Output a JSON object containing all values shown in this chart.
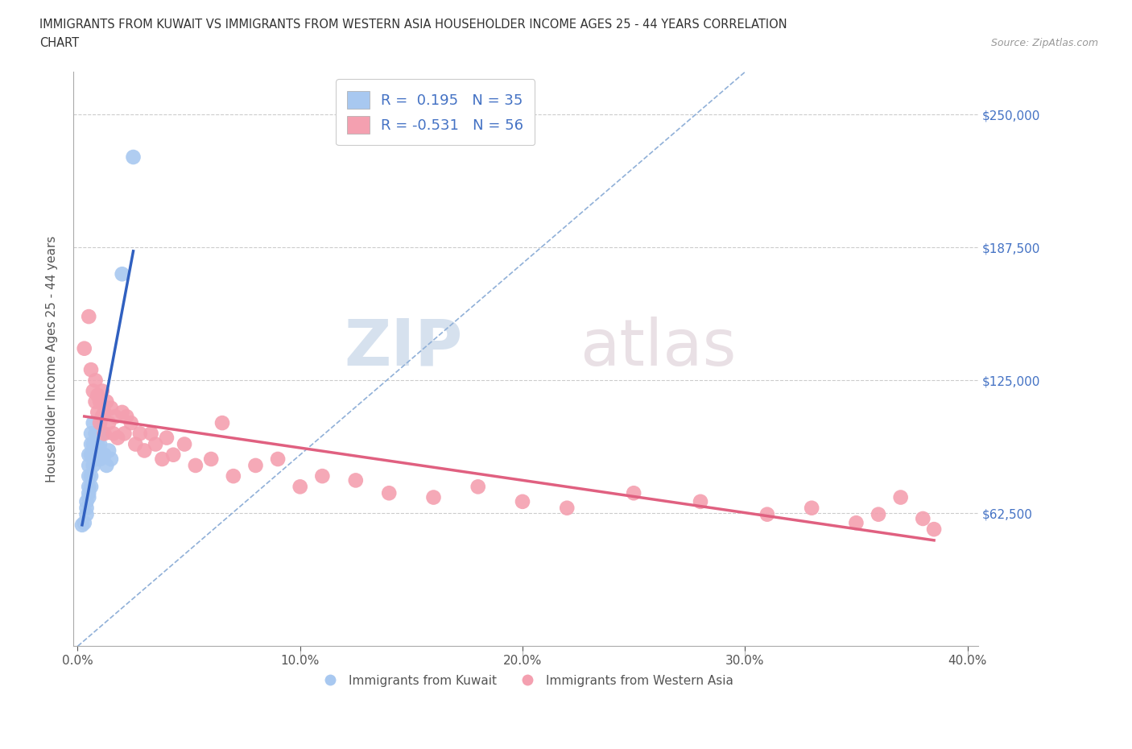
{
  "title_line1": "IMMIGRANTS FROM KUWAIT VS IMMIGRANTS FROM WESTERN ASIA HOUSEHOLDER INCOME AGES 25 - 44 YEARS CORRELATION",
  "title_line2": "CHART",
  "source_text": "Source: ZipAtlas.com",
  "ylabel": "Householder Income Ages 25 - 44 years",
  "xlabel_ticks": [
    "0.0%",
    "10.0%",
    "20.0%",
    "30.0%",
    "40.0%"
  ],
  "ytick_labels": [
    "$62,500",
    "$125,000",
    "$187,500",
    "$250,000"
  ],
  "ytick_values": [
    62500,
    125000,
    187500,
    250000
  ],
  "xlim": [
    -0.002,
    0.405
  ],
  "ylim": [
    0,
    270000
  ],
  "legend_label1": "R =  0.195   N = 35",
  "legend_label2": "R = -0.531   N = 56",
  "legend_bottom_label1": "Immigrants from Kuwait",
  "legend_bottom_label2": "Immigrants from Western Asia",
  "watermark_zip": "ZIP",
  "watermark_atlas": "atlas",
  "kuwait_color": "#a8c8f0",
  "western_asia_color": "#f4a0b0",
  "kuwait_line_color": "#3060c0",
  "western_asia_line_color": "#e06080",
  "kuwait_x": [
    0.002,
    0.003,
    0.004,
    0.004,
    0.004,
    0.005,
    0.005,
    0.005,
    0.005,
    0.005,
    0.005,
    0.006,
    0.006,
    0.006,
    0.006,
    0.006,
    0.007,
    0.007,
    0.007,
    0.007,
    0.008,
    0.008,
    0.008,
    0.009,
    0.009,
    0.009,
    0.01,
    0.01,
    0.011,
    0.012,
    0.013,
    0.014,
    0.015,
    0.02,
    0.025
  ],
  "kuwait_y": [
    57000,
    58000,
    62000,
    65000,
    68000,
    70000,
    72000,
    75000,
    80000,
    85000,
    90000,
    75000,
    80000,
    90000,
    95000,
    100000,
    85000,
    90000,
    95000,
    105000,
    88000,
    92000,
    100000,
    90000,
    95000,
    100000,
    88000,
    95000,
    100000,
    90000,
    85000,
    92000,
    88000,
    175000,
    230000
  ],
  "western_asia_x": [
    0.003,
    0.005,
    0.006,
    0.007,
    0.008,
    0.008,
    0.009,
    0.009,
    0.01,
    0.01,
    0.011,
    0.011,
    0.012,
    0.012,
    0.013,
    0.014,
    0.015,
    0.016,
    0.017,
    0.018,
    0.02,
    0.021,
    0.022,
    0.024,
    0.026,
    0.028,
    0.03,
    0.033,
    0.035,
    0.038,
    0.04,
    0.043,
    0.048,
    0.053,
    0.06,
    0.065,
    0.07,
    0.08,
    0.09,
    0.1,
    0.11,
    0.125,
    0.14,
    0.16,
    0.18,
    0.2,
    0.22,
    0.25,
    0.28,
    0.31,
    0.33,
    0.35,
    0.36,
    0.37,
    0.38,
    0.385
  ],
  "western_asia_y": [
    140000,
    155000,
    130000,
    120000,
    115000,
    125000,
    110000,
    118000,
    105000,
    115000,
    108000,
    120000,
    100000,
    110000,
    115000,
    105000,
    112000,
    100000,
    108000,
    98000,
    110000,
    100000,
    108000,
    105000,
    95000,
    100000,
    92000,
    100000,
    95000,
    88000,
    98000,
    90000,
    95000,
    85000,
    88000,
    105000,
    80000,
    85000,
    88000,
    75000,
    80000,
    78000,
    72000,
    70000,
    75000,
    68000,
    65000,
    72000,
    68000,
    62000,
    65000,
    58000,
    62000,
    70000,
    60000,
    55000
  ],
  "dashed_line_x": [
    0.0,
    0.3
  ],
  "dashed_line_y": [
    0,
    270000
  ]
}
